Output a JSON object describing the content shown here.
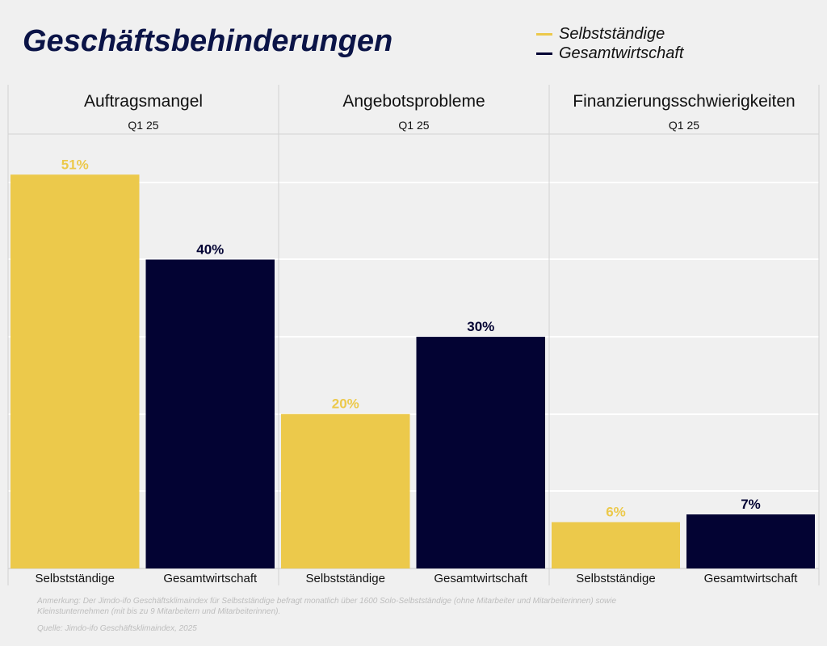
{
  "title": "Geschäftsbehinderungen",
  "legend": [
    {
      "label": "Selbstständige",
      "color": "#ecc94b"
    },
    {
      "label": "Gesamtwirtschaft",
      "color": "#030333"
    }
  ],
  "chart_data": {
    "type": "bar",
    "ylim": [
      0,
      55
    ],
    "grid": true,
    "legend_position": "top-right",
    "panels": [
      {
        "title": "Auftragsmangel",
        "subtitle": "Q1 25",
        "categories": [
          "Selbstständige",
          "Gesamtwirtschaft"
        ],
        "values": [
          51,
          40
        ],
        "labels": [
          "51%",
          "40%"
        ]
      },
      {
        "title": "Angebotsprobleme",
        "subtitle": "Q1 25",
        "categories": [
          "Selbstständige",
          "Gesamtwirtschaft"
        ],
        "values": [
          20,
          30
        ],
        "labels": [
          "20%",
          "30%"
        ]
      },
      {
        "title": "Finanzierungsschwierigkeiten",
        "subtitle": "Q1 25",
        "categories": [
          "Selbstständige",
          "Gesamtwirtschaft"
        ],
        "values": [
          6,
          7
        ],
        "labels": [
          "6%",
          "7%"
        ]
      }
    ]
  },
  "footnote": "Anmerkung: Der Jimdo-ifo Geschäftsklimaindex für Selbstständige befragt monatlich über 1600 Solo-Selbstständige (ohne Mitarbeiter und Mitarbeiterinnen) sowie Kleinstunternehmen (mit bis zu 9 Mitarbeitern und Mitarbeiterinnen).",
  "source": "Quelle: Jimdo-ifo Geschäftsklimaindex, 2025"
}
